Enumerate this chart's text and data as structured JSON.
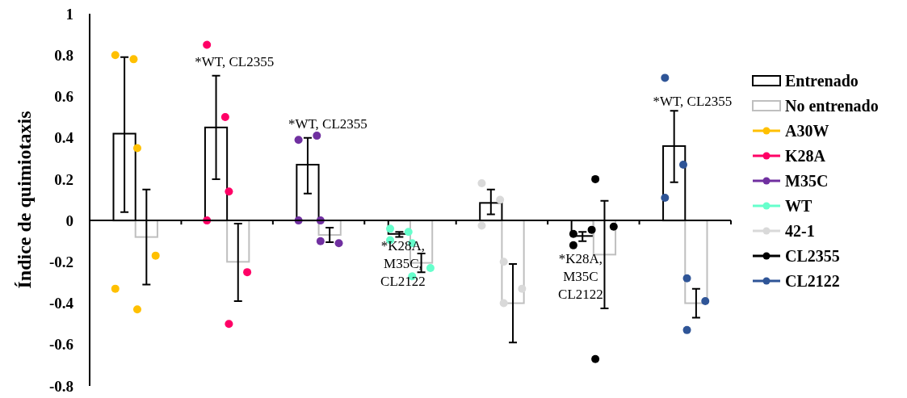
{
  "chart_data": {
    "type": "bar",
    "ylabel": "Índice de quimiotaxis",
    "categories": [
      null,
      null,
      null,
      null,
      null,
      null,
      null
    ],
    "ylim": [
      -0.8,
      1
    ],
    "yticks": [
      -0.8,
      -0.6,
      -0.4,
      -0.2,
      0,
      0.2,
      0.4,
      0.6,
      0.8,
      1
    ],
    "legend": "right",
    "marker": "circle",
    "series": [
      {
        "name": "Entrenado",
        "color": "#000000",
        "values": [
          0.42,
          0.45,
          0.27,
          -0.065,
          0.085,
          -0.075,
          0.36
        ],
        "errors": [
          [
            0.04,
            0.79
          ],
          [
            0.2,
            0.7
          ],
          [
            0.13,
            0.4
          ],
          [
            -0.08,
            -0.055
          ],
          [
            0.03,
            0.15
          ],
          [
            -0.1,
            -0.055
          ],
          [
            0.185,
            0.53
          ]
        ]
      },
      {
        "name": "No entrenado",
        "color": "#bfbfbf",
        "values": [
          -0.08,
          -0.2,
          -0.07,
          -0.205,
          -0.4,
          -0.165,
          -0.4
        ],
        "errors": [
          [
            -0.31,
            0.15
          ],
          [
            -0.39,
            -0.015
          ],
          [
            -0.105,
            -0.035
          ],
          [
            -0.25,
            -0.16
          ],
          [
            -0.59,
            -0.21
          ],
          [
            -0.425,
            0.095
          ],
          [
            -0.47,
            -0.33
          ]
        ]
      },
      {
        "name": "A30W",
        "type": "scatter",
        "color": "#ffc000",
        "values": [
          0.8,
          null,
          null,
          null,
          null,
          null,
          null
        ]
      },
      {
        "type": "scatter",
        "color": "#ffc000",
        "values": [
          0.78,
          null,
          null,
          null,
          null,
          null,
          null
        ]
      },
      {
        "type": "scatter",
        "color": "#ffc000",
        "values": [
          -0.33,
          null,
          null,
          null,
          null,
          null,
          null
        ]
      },
      {
        "type": "scatter",
        "color": "#ffc000",
        "values": [
          0.35,
          null,
          null,
          null,
          null,
          null,
          null
        ]
      },
      {
        "type": "scatter",
        "color": "#ffc000",
        "values": [
          -0.17,
          null,
          null,
          null,
          null,
          null,
          null
        ]
      },
      {
        "type": "scatter",
        "color": "#ffc000",
        "values": [
          -0.43,
          null,
          null,
          null,
          null,
          null,
          null
        ]
      },
      {
        "name": "K28A",
        "type": "scatter",
        "color": "#ff0066",
        "values": [
          null,
          0.85,
          null,
          null,
          null,
          null,
          null
        ]
      },
      {
        "type": "scatter",
        "color": "#ff0066",
        "values": [
          null,
          0.5,
          null,
          null,
          null,
          null,
          null
        ]
      },
      {
        "type": "scatter",
        "color": "#ff0066",
        "values": [
          null,
          0,
          null,
          null,
          null,
          null,
          null
        ]
      },
      {
        "type": "scatter",
        "color": "#ff0066",
        "values": [
          null,
          0.14,
          null,
          null,
          null,
          null,
          null
        ]
      },
      {
        "type": "scatter",
        "color": "#ff0066",
        "values": [
          null,
          -0.25,
          null,
          null,
          null,
          null,
          null
        ]
      },
      {
        "type": "scatter",
        "color": "#ff0066",
        "values": [
          null,
          -0.5,
          null,
          null,
          null,
          null,
          null
        ]
      },
      {
        "name": "M35C",
        "type": "scatter",
        "color": "#7030a0",
        "values": [
          null,
          null,
          0.39,
          null,
          null,
          null,
          null
        ]
      },
      {
        "type": "scatter",
        "color": "#7030a0",
        "values": [
          null,
          null,
          0.41,
          null,
          null,
          null,
          null
        ]
      },
      {
        "type": "scatter",
        "color": "#7030a0",
        "values": [
          null,
          null,
          0,
          null,
          null,
          null,
          null
        ]
      },
      {
        "type": "scatter",
        "color": "#7030a0",
        "values": [
          null,
          null,
          0,
          null,
          null,
          null,
          null
        ]
      },
      {
        "type": "scatter",
        "color": "#7030a0",
        "values": [
          null,
          null,
          -0.11,
          null,
          null,
          null,
          null
        ]
      },
      {
        "type": "scatter",
        "color": "#7030a0",
        "values": [
          null,
          null,
          -0.1,
          null,
          null,
          null,
          null
        ]
      },
      {
        "name": "WT",
        "type": "scatter",
        "color": "#66ffcc",
        "values": [
          null,
          null,
          null,
          -0.04,
          null,
          null,
          null
        ]
      },
      {
        "type": "scatter",
        "color": "#66ffcc",
        "values": [
          null,
          null,
          null,
          -0.055,
          null,
          null,
          null
        ]
      },
      {
        "type": "scatter",
        "color": "#66ffcc",
        "values": [
          null,
          null,
          null,
          -0.095,
          null,
          null,
          null
        ]
      },
      {
        "type": "scatter",
        "color": "#66ffcc",
        "values": [
          null,
          null,
          null,
          -0.11,
          null,
          null,
          null
        ]
      },
      {
        "type": "scatter",
        "color": "#66ffcc",
        "values": [
          null,
          null,
          null,
          -0.23,
          null,
          null,
          null
        ]
      },
      {
        "type": "scatter",
        "color": "#66ffcc",
        "values": [
          null,
          null,
          null,
          -0.27,
          null,
          null,
          null
        ]
      },
      {
        "name": "42-1",
        "type": "scatter",
        "color": "#d9d9d9",
        "values": [
          null,
          null,
          null,
          null,
          0.18,
          null,
          null
        ]
      },
      {
        "type": "scatter",
        "color": "#d9d9d9",
        "values": [
          null,
          null,
          null,
          null,
          0.1,
          null,
          null
        ]
      },
      {
        "type": "scatter",
        "color": "#d9d9d9",
        "values": [
          null,
          null,
          null,
          null,
          -0.025,
          null,
          null
        ]
      },
      {
        "type": "scatter",
        "color": "#d9d9d9",
        "values": [
          null,
          null,
          null,
          null,
          -0.2,
          null,
          null
        ]
      },
      {
        "type": "scatter",
        "color": "#d9d9d9",
        "values": [
          null,
          null,
          null,
          null,
          -0.33,
          null,
          null
        ]
      },
      {
        "type": "scatter",
        "color": "#d9d9d9",
        "values": [
          null,
          null,
          null,
          null,
          -0.4,
          null,
          null
        ]
      },
      {
        "name": "CL2355",
        "type": "scatter",
        "color": "#000000",
        "values": [
          null,
          null,
          null,
          null,
          null,
          -0.065,
          null
        ]
      },
      {
        "type": "scatter",
        "color": "#000000",
        "values": [
          null,
          null,
          null,
          null,
          null,
          -0.045,
          null
        ]
      },
      {
        "type": "scatter",
        "color": "#000000",
        "values": [
          null,
          null,
          null,
          null,
          null,
          -0.12,
          null
        ]
      },
      {
        "type": "scatter",
        "color": "#000000",
        "values": [
          null,
          null,
          null,
          null,
          null,
          0.2,
          null
        ]
      },
      {
        "type": "scatter",
        "color": "#000000",
        "values": [
          null,
          null,
          null,
          null,
          null,
          -0.03,
          null
        ]
      },
      {
        "type": "scatter",
        "color": "#000000",
        "values": [
          null,
          null,
          null,
          null,
          null,
          -0.67,
          null
        ]
      },
      {
        "name": "CL2122",
        "type": "scatter",
        "color": "#2f5597",
        "values": [
          null,
          null,
          null,
          null,
          null,
          null,
          0.69
        ]
      },
      {
        "type": "scatter",
        "color": "#2f5597",
        "values": [
          null,
          null,
          null,
          null,
          null,
          null,
          0.27
        ]
      },
      {
        "type": "scatter",
        "color": "#2f5597",
        "values": [
          null,
          null,
          null,
          null,
          null,
          null,
          0.11
        ]
      },
      {
        "type": "scatter",
        "color": "#2f5597",
        "values": [
          null,
          null,
          null,
          null,
          null,
          null,
          -0.28
        ]
      },
      {
        "type": "scatter",
        "color": "#2f5597",
        "values": [
          null,
          null,
          null,
          null,
          null,
          null,
          -0.39
        ]
      },
      {
        "type": "scatter",
        "color": "#2f5597",
        "values": [
          null,
          null,
          null,
          null,
          null,
          null,
          -0.53
        ]
      }
    ],
    "annotations": [
      "*WT, CL2355",
      "*WT, CL2355",
      "*K28A,\nM35C,\nCL2122",
      "*K28A,\nM35C\nCL2122",
      "*WT, CL2355"
    ]
  }
}
